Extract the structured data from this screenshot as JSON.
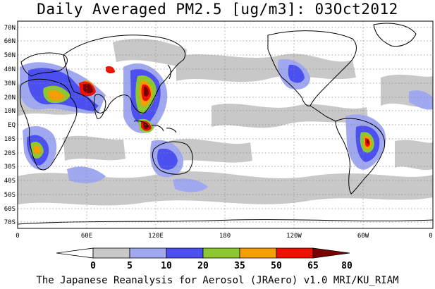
{
  "title": "Daily Averaged PM2.5 [ug/m3]: 03Oct2012",
  "footer": "The Japanese Reanalysis for Aerosol (JRAero) v1.0 MRI/KU_RIAM",
  "lat_labels": [
    "70N",
    "60N",
    "50N",
    "40N",
    "30N",
    "20N",
    "10N",
    "EQ",
    "10S",
    "20S",
    "30S",
    "40S",
    "50S",
    "60S",
    "70S"
  ],
  "lon_labels": [
    "0",
    "60E",
    "120E",
    "180",
    "120W",
    "60W",
    "0"
  ],
  "colorbar": {
    "boundaries": [
      "0",
      "5",
      "10",
      "20",
      "35",
      "50",
      "65",
      "80"
    ],
    "colors": [
      "#ffffff",
      "#c8c8c8",
      "#a0a8f0",
      "#4c50f0",
      "#8cc830",
      "#f5a000",
      "#f01000",
      "#7a0000"
    ]
  }
}
